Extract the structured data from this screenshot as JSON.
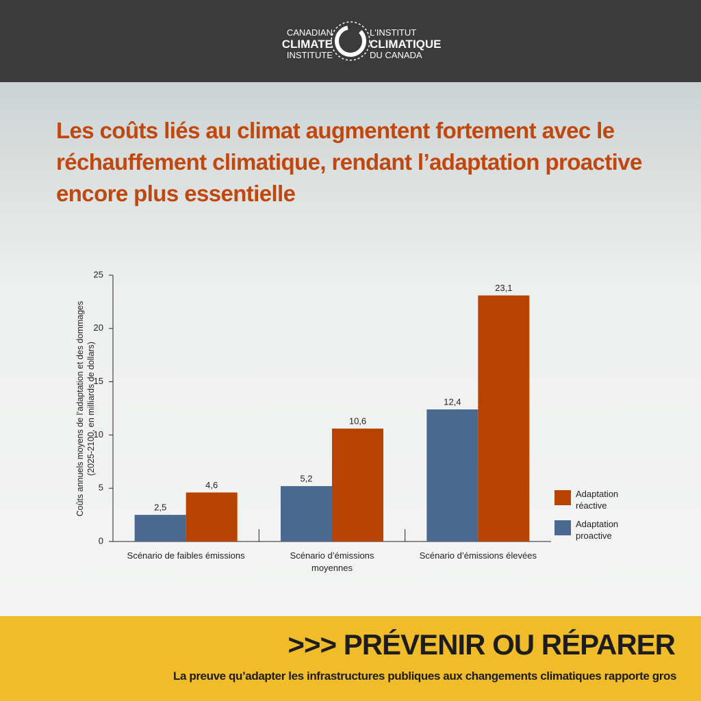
{
  "header": {
    "logo_left": [
      "CANADIAN",
      "CLIMATE",
      "INSTITUTE"
    ],
    "logo_right": [
      "L'INSTITUT",
      "CLIMATIQUE",
      "DU CANADA"
    ]
  },
  "chart_data": {
    "type": "bar",
    "title": "Les coûts liés au climat augmentent fortement avec le réchauffement climatique, rendant l’adaptation proactive encore plus essentielle",
    "ylabel": [
      "Coûts annuels moyens de l’adaptation et des dommages",
      "(2025-2100, en milliards de dollars)"
    ],
    "categories": [
      "Scénario de faibles émissions",
      "Scénario d’émissions moyennes",
      "Scénario d’émissions élevées"
    ],
    "series": [
      {
        "name": "Adaptation proactive",
        "color": "#4a6890",
        "values": [
          2.5,
          5.2,
          12.4
        ],
        "value_labels": [
          "2,5",
          "5,2",
          "12,4"
        ]
      },
      {
        "name": "Adaptation réactive",
        "color": "#b84300",
        "values": [
          4.6,
          10.6,
          23.1
        ],
        "value_labels": [
          "4,6",
          "10,6",
          "23,1"
        ]
      }
    ],
    "ylim": [
      0,
      25
    ],
    "yticks": [
      0,
      5,
      10,
      15,
      20,
      25
    ],
    "grid": false,
    "legend": "right"
  },
  "footer": {
    "arrows": ">>>",
    "title": "PRÉVENIR OU RÉPARER",
    "subtitle": "La preuve qu’adapter les infrastructures publiques aux changements climatiques rapporte gros"
  }
}
